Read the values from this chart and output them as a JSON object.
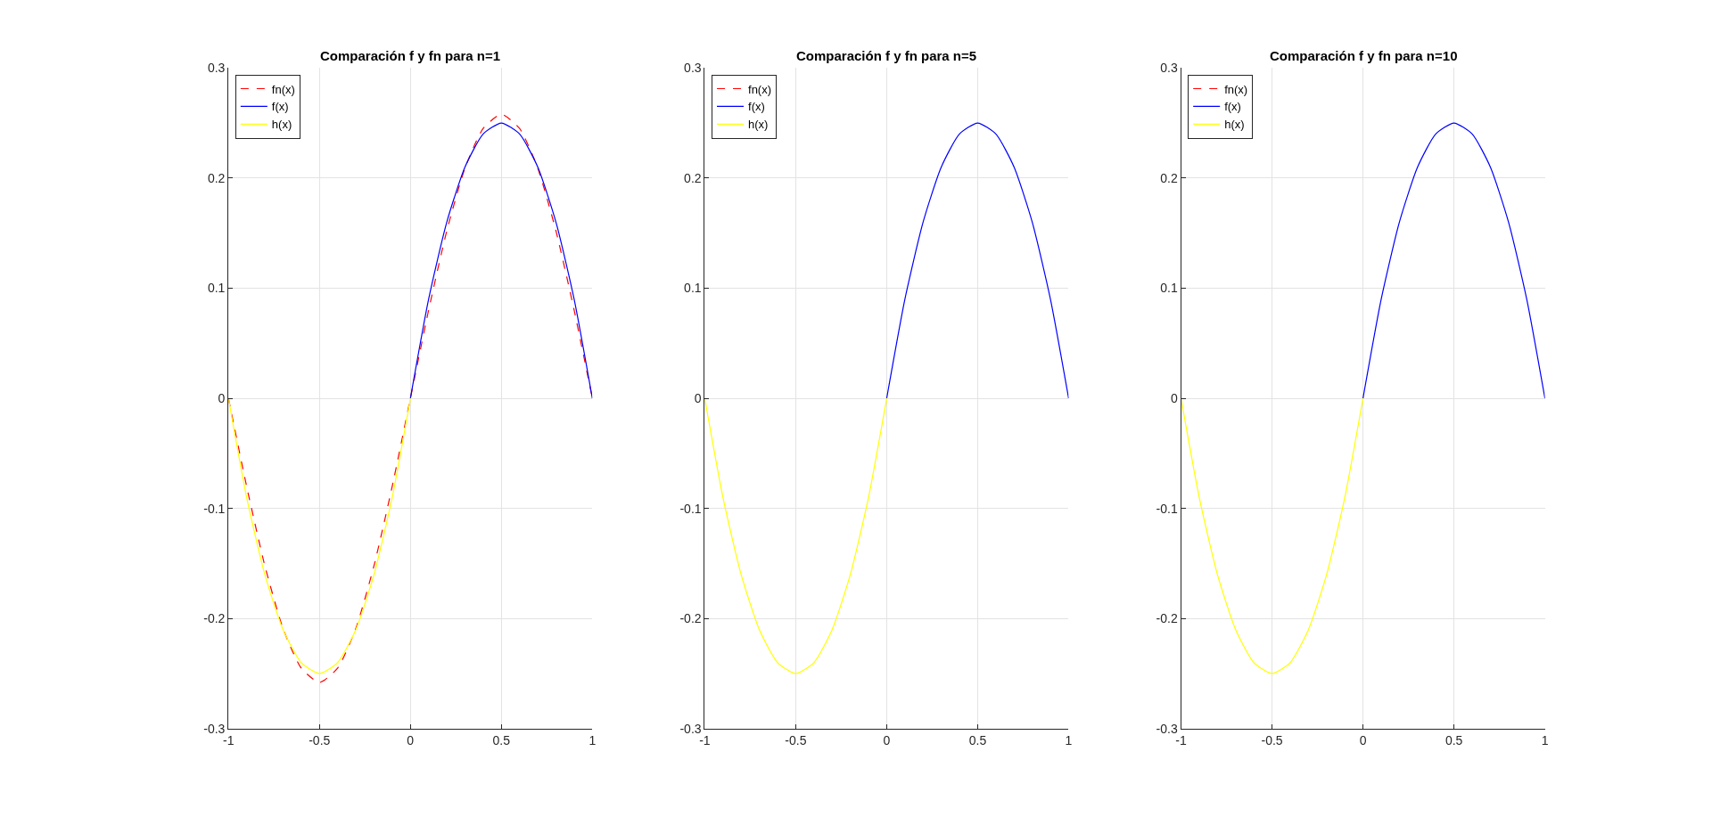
{
  "chart_data": [
    {
      "type": "line",
      "title": "Comparación f y fn para n=1",
      "xlim": [
        -1,
        1
      ],
      "ylim": [
        -0.3,
        0.3
      ],
      "xticks": [
        -1,
        -0.5,
        0,
        0.5,
        1
      ],
      "yticks": [
        -0.3,
        -0.2,
        -0.1,
        0,
        0.1,
        0.2,
        0.3
      ],
      "grid": true,
      "legend": "top left",
      "series": [
        {
          "name": "fn(x)",
          "color": "#ff0000",
          "line_style": "dashed",
          "x": [
            -1,
            -0.9,
            -0.8,
            -0.7,
            -0.6,
            -0.5,
            -0.4,
            -0.3,
            -0.2,
            -0.1,
            0,
            0.1,
            0.2,
            0.3,
            0.4,
            0.5,
            0.6,
            0.7,
            0.8,
            0.9,
            1
          ],
          "values": [
            0,
            -0.08,
            -0.152,
            -0.209,
            -0.245,
            -0.258,
            -0.245,
            -0.209,
            -0.152,
            -0.08,
            0,
            0.08,
            0.152,
            0.209,
            0.245,
            0.258,
            0.245,
            0.209,
            0.152,
            0.08,
            0
          ]
        },
        {
          "name": "f(x)",
          "color": "#0000ff",
          "line_style": "solid",
          "x": [
            0,
            0.1,
            0.2,
            0.3,
            0.4,
            0.5,
            0.6,
            0.7,
            0.8,
            0.9,
            1
          ],
          "values": [
            0,
            0.09,
            0.16,
            0.21,
            0.24,
            0.25,
            0.24,
            0.21,
            0.16,
            0.09,
            0
          ]
        },
        {
          "name": "h(x)",
          "color": "#ffff00",
          "line_style": "solid",
          "x": [
            -1,
            -0.9,
            -0.8,
            -0.7,
            -0.6,
            -0.5,
            -0.4,
            -0.3,
            -0.2,
            -0.1,
            0
          ],
          "values": [
            0,
            -0.09,
            -0.16,
            -0.21,
            -0.24,
            -0.25,
            -0.24,
            -0.21,
            -0.16,
            -0.09,
            0
          ]
        }
      ]
    },
    {
      "type": "line",
      "title": "Comparación f y fn para n=5",
      "xlim": [
        -1,
        1
      ],
      "ylim": [
        -0.3,
        0.3
      ],
      "xticks": [
        -1,
        -0.5,
        0,
        0.5,
        1
      ],
      "yticks": [
        -0.3,
        -0.2,
        -0.1,
        0,
        0.1,
        0.2,
        0.3
      ],
      "grid": true,
      "legend": "top left",
      "series": [
        {
          "name": "fn(x)",
          "color": "#ff0000",
          "line_style": "dashed"
        },
        {
          "name": "f(x)",
          "color": "#0000ff",
          "line_style": "solid",
          "x": [
            0,
            0.1,
            0.2,
            0.3,
            0.4,
            0.5,
            0.6,
            0.7,
            0.8,
            0.9,
            1
          ],
          "values": [
            0,
            0.09,
            0.16,
            0.21,
            0.24,
            0.25,
            0.24,
            0.21,
            0.16,
            0.09,
            0
          ]
        },
        {
          "name": "h(x)",
          "color": "#ffff00",
          "line_style": "solid",
          "x": [
            -1,
            -0.9,
            -0.8,
            -0.7,
            -0.6,
            -0.5,
            -0.4,
            -0.3,
            -0.2,
            -0.1,
            0
          ],
          "values": [
            0,
            -0.09,
            -0.16,
            -0.21,
            -0.24,
            -0.25,
            -0.24,
            -0.21,
            -0.16,
            -0.09,
            0
          ]
        }
      ]
    },
    {
      "type": "line",
      "title": "Comparación f y fn para n=10",
      "xlim": [
        -1,
        1
      ],
      "ylim": [
        -0.3,
        0.3
      ],
      "xticks": [
        -1,
        -0.5,
        0,
        0.5,
        1
      ],
      "yticks": [
        -0.3,
        -0.2,
        -0.1,
        0,
        0.1,
        0.2,
        0.3
      ],
      "grid": true,
      "legend": "top left",
      "series": [
        {
          "name": "fn(x)",
          "color": "#ff0000",
          "line_style": "dashed"
        },
        {
          "name": "f(x)",
          "color": "#0000ff",
          "line_style": "solid",
          "x": [
            0,
            0.1,
            0.2,
            0.3,
            0.4,
            0.5,
            0.6,
            0.7,
            0.8,
            0.9,
            1
          ],
          "values": [
            0,
            0.09,
            0.16,
            0.21,
            0.24,
            0.25,
            0.24,
            0.21,
            0.16,
            0.09,
            0
          ]
        },
        {
          "name": "h(x)",
          "color": "#ffff00",
          "line_style": "solid",
          "x": [
            -1,
            -0.9,
            -0.8,
            -0.7,
            -0.6,
            -0.5,
            -0.4,
            -0.3,
            -0.2,
            -0.1,
            0
          ],
          "values": [
            0,
            -0.09,
            -0.16,
            -0.21,
            -0.24,
            -0.25,
            -0.24,
            -0.21,
            -0.16,
            -0.09,
            0
          ]
        }
      ]
    }
  ]
}
